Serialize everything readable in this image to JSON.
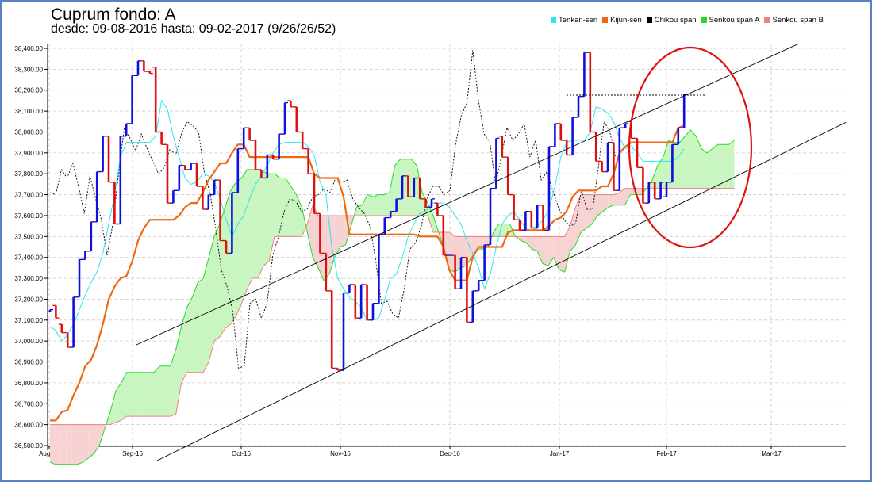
{
  "title": "Cuprum fondo: A",
  "subtitle": "desde: 09-08-2016 hasta: 09-02-2017 (9/26/26/52)",
  "colors": {
    "tenkan": "#2ee6ee",
    "kijun": "#ee6a12",
    "chikou": "#000000",
    "senkouA": "#22dd22",
    "senkouB": "#f08080",
    "cloud_bull": "#c8f5c0",
    "cloud_bear": "#f7d2d2",
    "bar_up": "#1010dd",
    "bar_down": "#dd1010",
    "circle": "#dd1111"
  },
  "legend": [
    {
      "label": "Tenkan-sen",
      "color": "#2ee6ee"
    },
    {
      "label": "Kijun-sen",
      "color": "#ee6a12"
    },
    {
      "label": "Chikou span",
      "color": "#000000"
    },
    {
      "label": "Senkou span A",
      "color": "#22dd22"
    },
    {
      "label": "Senkou span B",
      "color": "#f08080"
    }
  ],
  "chart_data": {
    "type": "candlestick",
    "title": "Cuprum fondo: A",
    "subtitle": "desde: 09-08-2016 hasta: 09-02-2017 (9/26/26/52)",
    "ylim": [
      36500,
      38400
    ],
    "y_ticks": [
      "36,500.00",
      "36,600.00",
      "36,700.00",
      "36,800.00",
      "36,900.00",
      "37,000.00",
      "37,100.00",
      "37,200.00",
      "37,300.00",
      "37,400.00",
      "37,500.00",
      "37,600.00",
      "37,700.00",
      "37,800.00",
      "37,900.00",
      "38,000.00",
      "38,100.00",
      "38,200.00",
      "38,300.00",
      "38,400.00"
    ],
    "x_ticks": [
      "Aug-16",
      "Sep-16",
      "Oct-16",
      "Nov-16",
      "Dec-16",
      "Jan-17",
      "Feb-17",
      "Mar-17"
    ],
    "grid": true,
    "bars": [
      {
        "o": 37140,
        "c": 37150
      },
      {
        "o": 37170,
        "c": 37110
      },
      {
        "o": 37080,
        "c": 37040
      },
      {
        "o": 37040,
        "c": 36970
      },
      {
        "o": 36970,
        "c": 37210
      },
      {
        "o": 37210,
        "c": 37390
      },
      {
        "o": 37390,
        "c": 37430
      },
      {
        "o": 37430,
        "c": 37570
      },
      {
        "o": 37570,
        "c": 37810
      },
      {
        "o": 37810,
        "c": 37980
      },
      {
        "o": 37980,
        "c": 37760
      },
      {
        "o": 37760,
        "c": 37560
      },
      {
        "o": 37560,
        "c": 37980
      },
      {
        "o": 37980,
        "c": 38040
      },
      {
        "o": 38040,
        "c": 38270
      },
      {
        "o": 38270,
        "c": 38340
      },
      {
        "o": 38340,
        "c": 38290
      },
      {
        "o": 38290,
        "c": 38280
      },
      {
        "o": 38310,
        "c": 38000
      },
      {
        "o": 38000,
        "c": 37940
      },
      {
        "o": 37940,
        "c": 37660
      },
      {
        "o": 37660,
        "c": 37720
      },
      {
        "o": 37720,
        "c": 37840
      },
      {
        "o": 37840,
        "c": 37820
      },
      {
        "o": 37820,
        "c": 37850
      },
      {
        "o": 37850,
        "c": 37740
      },
      {
        "o": 37740,
        "c": 37630
      },
      {
        "o": 37630,
        "c": 37700
      },
      {
        "o": 37700,
        "c": 37770
      },
      {
        "o": 37770,
        "c": 37480
      },
      {
        "o": 37480,
        "c": 37420
      },
      {
        "o": 37420,
        "c": 37710
      },
      {
        "o": 37710,
        "c": 37920
      },
      {
        "o": 37920,
        "c": 38020
      },
      {
        "o": 38020,
        "c": 37960
      },
      {
        "o": 37960,
        "c": 37820
      },
      {
        "o": 37820,
        "c": 37780
      },
      {
        "o": 37780,
        "c": 37890
      },
      {
        "o": 37890,
        "c": 37870
      },
      {
        "o": 37870,
        "c": 37990
      },
      {
        "o": 37990,
        "c": 38140
      },
      {
        "o": 38150,
        "c": 38120
      },
      {
        "o": 38120,
        "c": 38000
      },
      {
        "o": 38000,
        "c": 37920
      },
      {
        "o": 37920,
        "c": 37800
      },
      {
        "o": 37800,
        "c": 37610
      },
      {
        "o": 37610,
        "c": 37420
      },
      {
        "o": 37420,
        "c": 37240
      },
      {
        "o": 37240,
        "c": 36870
      },
      {
        "o": 36870,
        "c": 36860
      },
      {
        "o": 36860,
        "c": 37230
      },
      {
        "o": 37230,
        "c": 37270
      },
      {
        "o": 37270,
        "c": 37110
      },
      {
        "o": 37110,
        "c": 37270
      },
      {
        "o": 37270,
        "c": 37100
      },
      {
        "o": 37100,
        "c": 37180
      },
      {
        "o": 37180,
        "c": 37510
      },
      {
        "o": 37510,
        "c": 37590
      },
      {
        "o": 37590,
        "c": 37620
      },
      {
        "o": 37620,
        "c": 37680
      },
      {
        "o": 37680,
        "c": 37790
      },
      {
        "o": 37790,
        "c": 37690
      },
      {
        "o": 37690,
        "c": 37780
      },
      {
        "o": 37780,
        "c": 37680
      },
      {
        "o": 37680,
        "c": 37640
      },
      {
        "o": 37640,
        "c": 37680
      },
      {
        "o": 37660,
        "c": 37600
      },
      {
        "o": 37600,
        "c": 37410
      },
      {
        "o": 37410,
        "c": 37410
      },
      {
        "o": 37410,
        "c": 37250
      },
      {
        "o": 37250,
        "c": 37400
      },
      {
        "o": 37400,
        "c": 37090
      },
      {
        "o": 37090,
        "c": 37240
      },
      {
        "o": 37240,
        "c": 37290
      },
      {
        "o": 37290,
        "c": 37460
      },
      {
        "o": 37460,
        "c": 37730
      },
      {
        "o": 37730,
        "c": 37970
      },
      {
        "o": 37980,
        "c": 37880
      },
      {
        "o": 37880,
        "c": 37700
      },
      {
        "o": 37700,
        "c": 37580
      },
      {
        "o": 37580,
        "c": 37530
      },
      {
        "o": 37530,
        "c": 37620
      },
      {
        "o": 37620,
        "c": 37540
      },
      {
        "o": 37540,
        "c": 37650
      },
      {
        "o": 37650,
        "c": 37530
      },
      {
        "o": 37530,
        "c": 37930
      },
      {
        "o": 37930,
        "c": 38040
      },
      {
        "o": 38040,
        "c": 37960
      },
      {
        "o": 37960,
        "c": 37890
      },
      {
        "o": 37890,
        "c": 38070
      },
      {
        "o": 38070,
        "c": 38170
      },
      {
        "o": 38170,
        "c": 38380
      },
      {
        "o": 38380,
        "c": 38000
      },
      {
        "o": 38000,
        "c": 37860
      },
      {
        "o": 37860,
        "c": 37810
      },
      {
        "o": 37810,
        "c": 37950
      },
      {
        "o": 37950,
        "c": 37720
      },
      {
        "o": 37720,
        "c": 38020
      },
      {
        "o": 38020,
        "c": 38040
      },
      {
        "o": 38050,
        "c": 37970
      },
      {
        "o": 37970,
        "c": 37830
      },
      {
        "o": 37830,
        "c": 37660
      },
      {
        "o": 37660,
        "c": 37760
      },
      {
        "o": 37760,
        "c": 37680
      },
      {
        "o": 37680,
        "c": 37760
      },
      {
        "o": 37690,
        "c": 37760
      },
      {
        "o": 37760,
        "c": 37940
      },
      {
        "o": 37940,
        "c": 38020
      },
      {
        "o": 38020,
        "c": 38180
      }
    ],
    "tenkan": [
      37070,
      37050,
      37000,
      37030,
      37080,
      37150,
      37220,
      37280,
      37330,
      37420,
      37560,
      37700,
      37880,
      37950,
      37950,
      37950,
      37950,
      37950,
      37980,
      38150,
      38110,
      37980,
      37880,
      37780,
      37750,
      37760,
      37800,
      37790,
      37760,
      37680,
      37580,
      37500,
      37560,
      37600,
      37680,
      37750,
      37790,
      37840,
      37900,
      37940,
      37950,
      37950,
      37950,
      37950,
      37930,
      37890,
      37760,
      37700,
      37450,
      37300,
      37250,
      37210,
      37190,
      37160,
      37100,
      37100,
      37110,
      37200,
      37300,
      37320,
      37400,
      37500,
      37560,
      37610,
      37620,
      37660,
      37660,
      37660,
      37640,
      37600,
      37560,
      37480,
      37420,
      37350,
      37250,
      37320,
      37450,
      37560,
      37600,
      37620,
      37580,
      37540,
      37540,
      37550,
      37580,
      37630,
      37740,
      37880,
      37950,
      37960,
      37960,
      37960,
      38000,
      38120,
      38110,
      38090,
      38050,
      37970,
      37920,
      37930,
      37900,
      37860,
      37860,
      37860,
      37860,
      37860,
      37860,
      37880,
      37920
    ],
    "kijun": [
      36620,
      36620,
      36660,
      36670,
      36740,
      36800,
      36880,
      36910,
      36980,
      37080,
      37200,
      37260,
      37300,
      37310,
      37380,
      37480,
      37540,
      37580,
      37580,
      37580,
      37580,
      37580,
      37600,
      37640,
      37660,
      37660,
      37710,
      37770,
      37810,
      37850,
      37850,
      37900,
      37940,
      37940,
      37880,
      37880,
      37880,
      37880,
      37880,
      37880,
      37880,
      37880,
      37880,
      37880,
      37880,
      37800,
      37780,
      37780,
      37780,
      37780,
      37690,
      37510,
      37510,
      37510,
      37510,
      37510,
      37510,
      37510,
      37510,
      37510,
      37510,
      37510,
      37510,
      37500,
      37500,
      37500,
      37500,
      37450,
      37340,
      37290,
      37290,
      37290,
      37400,
      37450,
      37450,
      37450,
      37450,
      37450,
      37520,
      37530,
      37530,
      37530,
      37530,
      37530,
      37530,
      37550,
      37580,
      37590,
      37620,
      37690,
      37720,
      37720,
      37720,
      37720,
      37740,
      37740,
      37800,
      37900,
      37930,
      37950,
      37950,
      37950,
      37950,
      37950,
      37950,
      37950,
      37950,
      38020,
      38030
    ],
    "chikou": [
      37710,
      37700,
      37820,
      37780,
      37850,
      37740,
      37610,
      37790,
      37680,
      37580,
      37410,
      37560,
      37800,
      38020,
      37970,
      37910,
      37990,
      37920,
      37860,
      37800,
      37830,
      37920,
      37890,
      37990,
      38050,
      38030,
      38000,
      37810,
      37710,
      37540,
      37340,
      37260,
      37140,
      36870,
      36880,
      37180,
      37200,
      37110,
      37180,
      37410,
      37500,
      37620,
      37680,
      37670,
      37620,
      37630,
      37690,
      37700,
      37730,
      37710,
      37780,
      37760,
      37770,
      37680,
      37640,
      37610,
      37550,
      37390,
      37180,
      37190,
      37130,
      37110,
      37250,
      37440,
      37470,
      37550,
      37680,
      37740,
      37740,
      37700,
      37720,
      37940,
      38080,
      38140,
      38390,
      38150,
      37990,
      37950,
      37750,
      37880,
      38020,
      37960,
      37990,
      38040,
      37880,
      37960,
      37770,
      37810,
      37720,
      37640,
      37580,
      37550,
      37560,
      37720,
      37630,
      37630,
      37830,
      38050,
      38000,
      37880
    ],
    "senkouA": [
      36420,
      36410,
      36410,
      36410,
      36410,
      36410,
      36420,
      36440,
      36460,
      36500,
      36580,
      36660,
      36760,
      36800,
      36850,
      36850,
      36850,
      36850,
      36850,
      36850,
      36880,
      36880,
      36880,
      36960,
      37070,
      37160,
      37210,
      37280,
      37300,
      37400,
      37500,
      37560,
      37640,
      37720,
      37760,
      37780,
      37820,
      37820,
      37820,
      37810,
      37800,
      37800,
      37780,
      37780,
      37740,
      37700,
      37640,
      37520,
      37400,
      37350,
      37290,
      37320,
      37400,
      37450,
      37460,
      37550,
      37640,
      37650,
      37700,
      37690,
      37700,
      37700,
      37710,
      37840,
      37870,
      37870,
      37870,
      37840,
      37710,
      37660,
      37600,
      37520,
      37440,
      37340,
      37330,
      37350,
      37360,
      37400,
      37440,
      37440,
      37450,
      37520,
      37560,
      37560,
      37560,
      37500,
      37480,
      37470,
      37440,
      37430,
      37370,
      37360,
      37400,
      37340,
      37330,
      37430,
      37460,
      37520,
      37540,
      37560,
      37600,
      37620,
      37640,
      37650,
      37650,
      37650,
      37700,
      37700,
      37700,
      37730,
      37770,
      37840,
      37880,
      37960,
      37950,
      37950,
      37980,
      38010,
      37980,
      37920,
      37900,
      37920,
      37940,
      37940,
      37940,
      37960
    ],
    "senkouB": [
      36600,
      36600,
      36600,
      36600,
      36600,
      36600,
      36600,
      36600,
      36600,
      36600,
      36600,
      36600,
      36610,
      36620,
      36640,
      36640,
      36640,
      36640,
      36640,
      36640,
      36640,
      36640,
      36640,
      36650,
      36800,
      36850,
      36850,
      36850,
      36850,
      36900,
      37000,
      37020,
      37060,
      37080,
      37120,
      37180,
      37250,
      37300,
      37300,
      37360,
      37380,
      37500,
      37500,
      37500,
      37500,
      37500,
      37500,
      37560,
      37650,
      37600,
      37600,
      37600,
      37600,
      37600,
      37600,
      37600,
      37600,
      37600,
      37600,
      37600,
      37600,
      37600,
      37600,
      37600,
      37600,
      37600,
      37600,
      37600,
      37600,
      37600,
      37520,
      37520,
      37520,
      37520,
      37500,
      37500,
      37500,
      37500,
      37500,
      37500,
      37500,
      37500,
      37500,
      37500,
      37500,
      37500,
      37500,
      37500,
      37500,
      37500,
      37500,
      37500,
      37500,
      37500,
      37500,
      37550,
      37640,
      37700,
      37700,
      37700,
      37700,
      37700,
      37700,
      37700,
      37710,
      37730,
      37730,
      37730,
      37730,
      37730,
      37730,
      37730,
      37730,
      37730,
      37730,
      37730,
      37730,
      37730,
      37730,
      37730,
      37730,
      37730,
      37730,
      37730,
      37730,
      37730,
      37730,
      37730,
      37730,
      37730
    ]
  }
}
